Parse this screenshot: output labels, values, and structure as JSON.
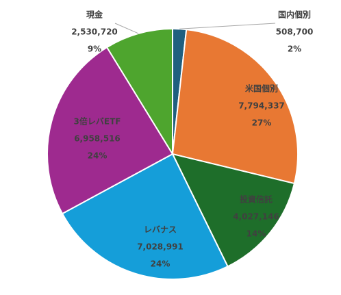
{
  "chart_data": {
    "type": "pie",
    "title": "",
    "legend": "none",
    "slices": [
      {
        "label": "国内個別",
        "value": 508700,
        "value_text": "508,700",
        "pct_text": "2%",
        "color": "#1F5F7F"
      },
      {
        "label": "米国個別",
        "value": 7794337,
        "value_text": "7,794,337",
        "pct_text": "27%",
        "color": "#E87833"
      },
      {
        "label": "投資信託",
        "value": 4027146,
        "value_text": "4,027,146",
        "pct_text": "14%",
        "color": "#1E6E2A"
      },
      {
        "label": "レバナス",
        "value": 7028991,
        "value_text": "7,028,991",
        "pct_text": "24%",
        "color": "#159ED9"
      },
      {
        "label": "3倍レバETF",
        "value": 6958516,
        "value_text": "6,958,516",
        "pct_text": "24%",
        "color": "#9E2A8F"
      },
      {
        "label": "現金",
        "value": 2530720,
        "value_text": "2,530,720",
        "pct_text": "9%",
        "color": "#4EA52E"
      }
    ]
  }
}
